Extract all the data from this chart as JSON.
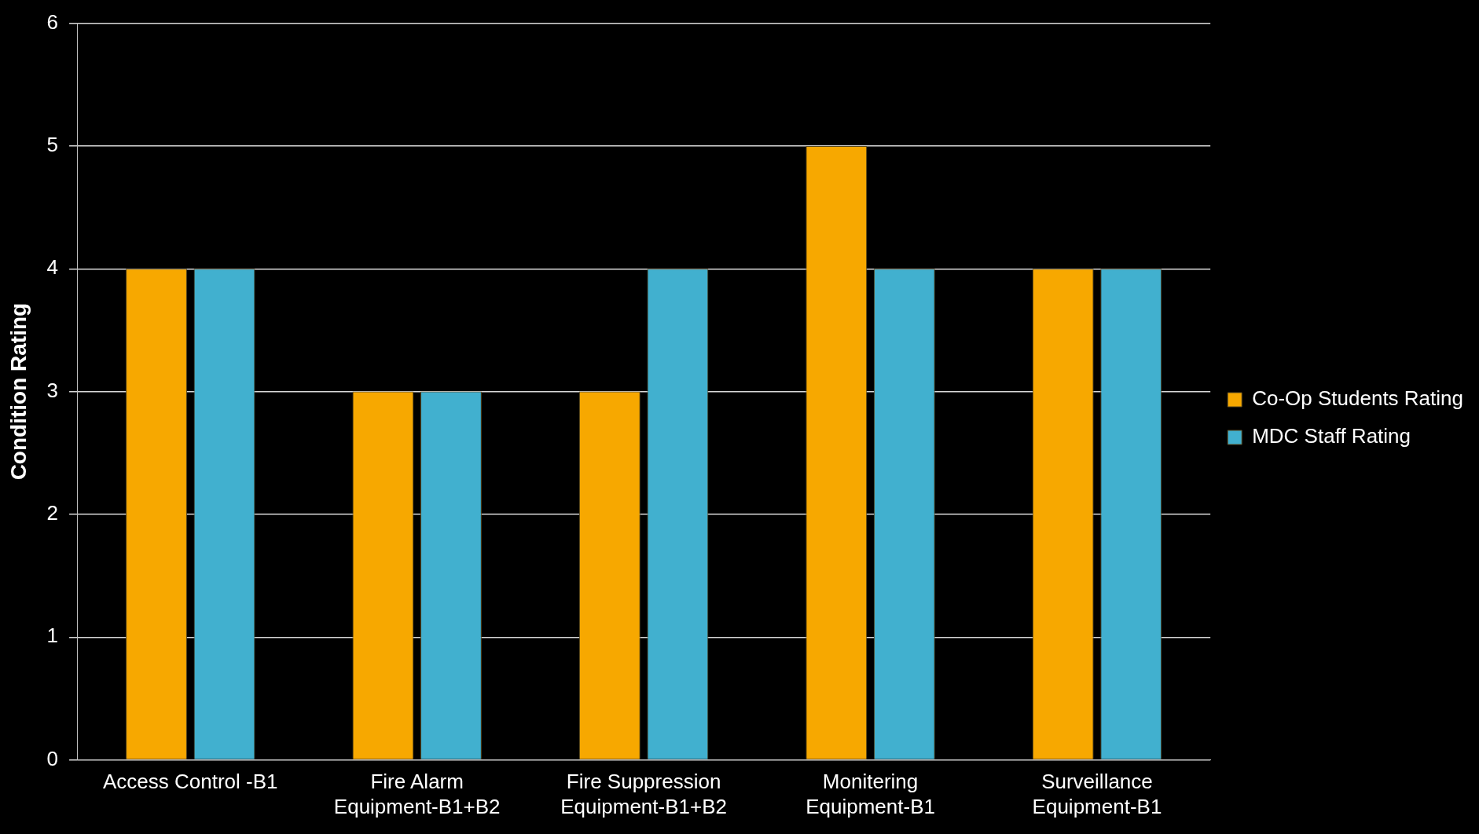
{
  "chart_data": {
    "type": "bar",
    "ylabel": "Condition Rating",
    "categories": [
      "Access Control -B1",
      "Fire Alarm\nEquipment-B1+B2",
      "Fire Suppression\nEquipment-B1+B2",
      "Monitering\nEquipment-B1",
      "Surveillance\nEquipment-B1"
    ],
    "series": [
      {
        "name": "Co-Op Students Rating",
        "color": "#f7a800",
        "values": [
          4,
          3,
          3,
          5,
          4
        ]
      },
      {
        "name": "MDC Staff Rating",
        "color": "#41b0cf",
        "values": [
          4,
          3,
          4,
          4,
          4
        ]
      }
    ],
    "ylim": [
      0,
      6
    ],
    "yticks": [
      0,
      1,
      2,
      3,
      4,
      5,
      6
    ],
    "grid": "y",
    "legend": "right"
  }
}
